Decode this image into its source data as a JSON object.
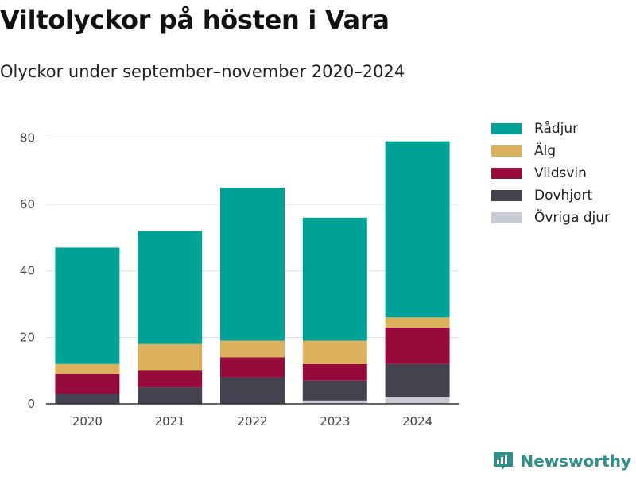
{
  "title": "Viltolyckor på hösten i Vara",
  "subtitle": "Olyckor under september–november 2020–2024",
  "brand": {
    "name": "Newsworthy",
    "icon": "bar-chart-logo-icon",
    "color": "#2f8f8a"
  },
  "chart_data": {
    "type": "bar",
    "stacked": true,
    "categories": [
      "2020",
      "2021",
      "2022",
      "2023",
      "2024"
    ],
    "series": [
      {
        "name": "Övriga djur",
        "color": "#c9c9d3",
        "values": [
          0,
          0,
          0,
          1,
          2
        ]
      },
      {
        "name": "Dovhjort",
        "color": "#44424f",
        "values": [
          3,
          5,
          8,
          6,
          10
        ]
      },
      {
        "name": "Vildsvin",
        "color": "#960a3c",
        "values": [
          6,
          5,
          6,
          5,
          11
        ]
      },
      {
        "name": "Älg",
        "color": "#dcb05d",
        "values": [
          3,
          8,
          5,
          7,
          3
        ]
      },
      {
        "name": "Rådjur",
        "color": "#00a298",
        "values": [
          35,
          34,
          46,
          37,
          53
        ]
      }
    ],
    "legend_order": [
      "Rådjur",
      "Älg",
      "Vildsvin",
      "Dovhjort",
      "Övriga djur"
    ],
    "yticks": [
      0,
      20,
      40,
      60,
      80
    ],
    "ylim": [
      0,
      88
    ],
    "grid": true,
    "legend_position": "right"
  }
}
